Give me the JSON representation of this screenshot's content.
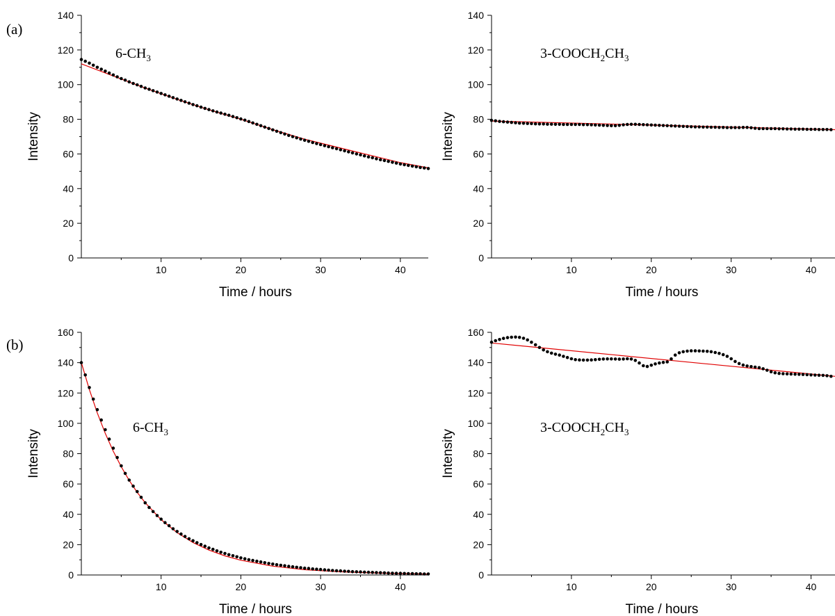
{
  "panel_labels": [
    "(a)",
    "(b)"
  ],
  "chart_data": [
    {
      "type": "scatter",
      "panel": "(a)",
      "annotation": {
        "main": "6-CH",
        "parts": [
          [
            "6-CH",
            ""
          ],
          [
            "3",
            "sub"
          ]
        ]
      },
      "xlabel": "Time / hours",
      "ylabel": "Intensity",
      "xlim": [
        0,
        43.5
      ],
      "ylim": [
        0,
        140
      ],
      "xticks": [
        10,
        20,
        30,
        40
      ],
      "yticks": [
        0,
        20,
        40,
        60,
        80,
        100,
        120,
        140
      ],
      "yminor": 10,
      "xminor": 5,
      "fit_line": {
        "color": "#e00000",
        "x": [
          0,
          4,
          8,
          12,
          16,
          20,
          24,
          28,
          32,
          36,
          40,
          43.5
        ],
        "y": [
          112,
          105,
          98,
          91.5,
          85.5,
          80,
          74,
          68.5,
          64,
          59.5,
          55,
          52
        ]
      },
      "series": [
        {
          "x": [
            0,
            0.5,
            1.0,
            1.5,
            2.0,
            2.5,
            3.0,
            3.5,
            4.0,
            4.5,
            5.0,
            5.5,
            6.0,
            6.5,
            7.0,
            7.5,
            8.0,
            8.5,
            9.0,
            9.5,
            10.0,
            10.5,
            11.0,
            11.5,
            12.0,
            12.5,
            13.0,
            13.5,
            14.0,
            14.5,
            15.0,
            15.5,
            16.0,
            16.5,
            17.0,
            17.5,
            18.0,
            18.5,
            19.0,
            19.5,
            20.0,
            20.5,
            21.0,
            21.5,
            22.0,
            22.5,
            23.0,
            23.5,
            24.0,
            24.5,
            25.0,
            25.5,
            26.0,
            26.5,
            27.0,
            27.5,
            28.0,
            28.5,
            29.0,
            29.5,
            30.0,
            30.5,
            31.0,
            31.5,
            32.0,
            32.5,
            33.0,
            33.5,
            34.0,
            34.5,
            35.0,
            35.5,
            36.0,
            36.5,
            37.0,
            37.5,
            38.0,
            38.5,
            39.0,
            39.5,
            40.0,
            40.5,
            41.0,
            41.5,
            42.0,
            42.5,
            43.0,
            43.5
          ],
          "y": [
            114.5,
            113.5,
            112.4,
            111.2,
            110.0,
            108.9,
            107.8,
            106.7,
            105.6,
            104.5,
            103.5,
            102.6,
            101.6,
            100.7,
            99.9,
            99.0,
            98.1,
            97.3,
            96.5,
            95.7,
            94.9,
            94.1,
            93.3,
            92.5,
            91.7,
            90.9,
            90.1,
            89.3,
            88.5,
            87.8,
            87.0,
            86.3,
            85.6,
            84.9,
            84.2,
            83.6,
            82.9,
            82.3,
            81.6,
            80.9,
            80.2,
            79.5,
            78.7,
            77.9,
            77.1,
            76.3,
            75.5,
            74.7,
            73.9,
            73.1,
            72.3,
            71.5,
            70.7,
            70.0,
            69.3,
            68.6,
            67.9,
            67.3,
            66.6,
            66.0,
            65.4,
            64.8,
            64.2,
            63.6,
            63.0,
            62.4,
            61.8,
            61.2,
            60.6,
            60.0,
            59.5,
            58.9,
            58.3,
            57.8,
            57.2,
            56.7,
            56.2,
            55.7,
            55.2,
            54.7,
            54.2,
            53.8,
            53.4,
            53.0,
            52.6,
            52.2,
            51.9,
            51.6
          ]
        }
      ]
    },
    {
      "type": "scatter",
      "panel": "(a)",
      "annotation": {
        "parts": [
          [
            "3-COOCH",
            ""
          ],
          [
            "2",
            "sub"
          ],
          [
            "CH",
            ""
          ],
          [
            "3",
            "sub"
          ]
        ]
      },
      "xlabel": "Time / hours",
      "ylabel": "Intensity",
      "xlim": [
        0,
        43
      ],
      "ylim": [
        0,
        140
      ],
      "xticks": [
        10,
        20,
        30,
        40
      ],
      "yticks": [
        0,
        20,
        40,
        60,
        80,
        100,
        120,
        140
      ],
      "yminor": 10,
      "xminor": 5,
      "fit_line": {
        "color": "#e00000",
        "x": [
          0,
          43
        ],
        "y": [
          79,
          74
        ]
      },
      "series": [
        {
          "x": [
            0,
            0.5,
            1.0,
            1.5,
            2.0,
            2.5,
            3.0,
            3.5,
            4.0,
            4.5,
            5.0,
            5.5,
            6.0,
            6.5,
            7.0,
            7.5,
            8.0,
            8.5,
            9.0,
            9.5,
            10.0,
            10.5,
            11.0,
            11.5,
            12.0,
            12.5,
            13.0,
            13.5,
            14.0,
            14.5,
            15.0,
            15.5,
            16.0,
            16.5,
            17.0,
            17.5,
            18.0,
            18.5,
            19.0,
            19.5,
            20.0,
            20.5,
            21.0,
            21.5,
            22.0,
            22.5,
            23.0,
            23.5,
            24.0,
            24.5,
            25.0,
            25.5,
            26.0,
            26.5,
            27.0,
            27.5,
            28.0,
            28.5,
            29.0,
            29.5,
            30.0,
            30.5,
            31.0,
            31.5,
            32.0,
            32.5,
            33.0,
            33.5,
            34.0,
            34.5,
            35.0,
            35.5,
            36.0,
            36.5,
            37.0,
            37.5,
            38.0,
            38.5,
            39.0,
            39.5,
            40.0,
            40.5,
            41.0,
            41.5,
            42.0,
            42.5,
            43.0
          ],
          "y": [
            79.4,
            79.1,
            78.8,
            78.6,
            78.4,
            78.2,
            78.0,
            77.8,
            77.7,
            77.6,
            77.5,
            77.4,
            77.3,
            77.3,
            77.2,
            77.2,
            77.1,
            77.1,
            77.0,
            77.0,
            77.0,
            77.0,
            77.0,
            76.9,
            76.9,
            76.8,
            76.7,
            76.6,
            76.5,
            76.4,
            76.3,
            76.3,
            76.5,
            76.8,
            77.0,
            77.1,
            77.1,
            77.0,
            76.9,
            76.8,
            76.7,
            76.6,
            76.5,
            76.4,
            76.3,
            76.2,
            76.1,
            76.0,
            75.9,
            75.8,
            75.7,
            75.6,
            75.6,
            75.5,
            75.5,
            75.4,
            75.4,
            75.3,
            75.3,
            75.2,
            75.2,
            75.2,
            75.2,
            75.3,
            75.3,
            75.1,
            74.8,
            74.6,
            74.6,
            74.6,
            74.6,
            74.6,
            74.5,
            74.5,
            74.4,
            74.4,
            74.3,
            74.3,
            74.3,
            74.2,
            74.2,
            74.2,
            74.1,
            74.1,
            74.1,
            74.0,
            74.0
          ]
        }
      ]
    },
    {
      "type": "scatter",
      "panel": "(b)",
      "annotation": {
        "parts": [
          [
            "6-CH",
            ""
          ],
          [
            "3",
            "sub"
          ]
        ]
      },
      "xlabel": "Time / hours",
      "ylabel": "Intensity",
      "xlim": [
        0,
        43.5
      ],
      "ylim": [
        0,
        160
      ],
      "xticks": [
        10,
        20,
        30,
        40
      ],
      "yticks": [
        0,
        20,
        40,
        60,
        80,
        100,
        120,
        140,
        160
      ],
      "yminor": 10,
      "xminor": 5,
      "fit_line": {
        "color": "#e00000",
        "x": [
          0,
          1,
          2,
          3,
          4,
          5,
          6,
          7,
          8,
          10,
          12,
          14,
          16,
          18,
          20,
          24,
          28,
          32,
          36,
          40,
          43.5
        ],
        "y": [
          140,
          122.3,
          106.9,
          93.4,
          81.6,
          71.4,
          62.4,
          54.5,
          47.7,
          36.5,
          27.9,
          21.4,
          16.4,
          12.6,
          9.7,
          5.8,
          3.5,
          2.2,
          1.4,
          0.9,
          0.6
        ]
      },
      "series": [
        {
          "x": [
            0,
            0.5,
            1.0,
            1.5,
            2.0,
            2.5,
            3.0,
            3.5,
            4.0,
            4.5,
            5.0,
            5.5,
            6.0,
            6.5,
            7.0,
            7.5,
            8.0,
            8.5,
            9.0,
            9.5,
            10.0,
            10.5,
            11.0,
            11.5,
            12.0,
            12.5,
            13.0,
            13.5,
            14.0,
            14.5,
            15.0,
            15.5,
            16.0,
            16.5,
            17.0,
            17.5,
            18.0,
            18.5,
            19.0,
            19.5,
            20.0,
            20.5,
            21.0,
            21.5,
            22.0,
            22.5,
            23.0,
            23.5,
            24.0,
            24.5,
            25.0,
            25.5,
            26.0,
            26.5,
            27.0,
            27.5,
            28.0,
            28.5,
            29.0,
            29.5,
            30.0,
            30.5,
            31.0,
            31.5,
            32.0,
            32.5,
            33.0,
            33.5,
            34.0,
            34.5,
            35.0,
            35.5,
            36.0,
            36.5,
            37.0,
            37.5,
            38.0,
            38.5,
            39.0,
            39.5,
            40.0,
            40.5,
            41.0,
            41.5,
            42.0,
            42.5,
            43.0,
            43.5
          ],
          "y": [
            140,
            131.9,
            123.6,
            116.0,
            109.0,
            102.2,
            95.8,
            89.6,
            83.6,
            77.5,
            72.0,
            67.0,
            62.6,
            58.6,
            55.0,
            51.2,
            47.6,
            44.5,
            41.8,
            39.2,
            36.8,
            34.5,
            32.5,
            30.5,
            28.7,
            27.0,
            25.4,
            23.9,
            22.6,
            21.3,
            20.1,
            19.0,
            17.9,
            16.9,
            15.9,
            15.0,
            14.2,
            13.4,
            12.7,
            12.0,
            11.3,
            10.7,
            10.1,
            9.6,
            9.1,
            8.6,
            8.1,
            7.6,
            7.2,
            6.8,
            6.4,
            6.1,
            5.7,
            5.4,
            5.1,
            4.8,
            4.5,
            4.3,
            4.0,
            3.8,
            3.6,
            3.4,
            3.2,
            3.0,
            2.8,
            2.7,
            2.5,
            2.4,
            2.2,
            2.1,
            2.0,
            1.9,
            1.8,
            1.7,
            1.6,
            1.5,
            1.4,
            1.3,
            1.2,
            1.1,
            1.1,
            1.0,
            0.9,
            0.9,
            0.8,
            0.8,
            0.7,
            0.7
          ]
        }
      ]
    },
    {
      "type": "scatter",
      "panel": "(b)",
      "annotation": {
        "parts": [
          [
            "3-COOCH",
            ""
          ],
          [
            "2",
            "sub"
          ],
          [
            "CH",
            ""
          ],
          [
            "3",
            "sub"
          ]
        ]
      },
      "xlabel": "Time / hours",
      "ylabel": "Intensity",
      "xlim": [
        0,
        43
      ],
      "ylim": [
        0,
        160
      ],
      "xticks": [
        10,
        20,
        30,
        40
      ],
      "yticks": [
        0,
        20,
        40,
        60,
        80,
        100,
        120,
        140,
        160
      ],
      "yminor": 10,
      "xminor": 5,
      "fit_line": {
        "color": "#e00000",
        "x": [
          0,
          43
        ],
        "y": [
          153,
          131
        ]
      },
      "series": [
        {
          "x": [
            0,
            0.5,
            1.0,
            1.5,
            2.0,
            2.5,
            3.0,
            3.5,
            4.0,
            4.5,
            5.0,
            5.5,
            6.0,
            6.5,
            7.0,
            7.5,
            8.0,
            8.5,
            9.0,
            9.5,
            10.0,
            10.5,
            11.0,
            11.5,
            12.0,
            12.5,
            13.0,
            13.5,
            14.0,
            14.5,
            15.0,
            15.5,
            16.0,
            16.5,
            17.0,
            17.5,
            18.0,
            18.5,
            19.0,
            19.5,
            20.0,
            20.5,
            21.0,
            21.5,
            22.0,
            22.5,
            23.0,
            23.5,
            24.0,
            24.5,
            25.0,
            25.5,
            26.0,
            26.5,
            27.0,
            27.5,
            28.0,
            28.5,
            29.0,
            29.5,
            30.0,
            30.5,
            31.0,
            31.5,
            32.0,
            32.5,
            33.0,
            33.5,
            34.0,
            34.5,
            35.0,
            35.5,
            36.0,
            36.5,
            37.0,
            37.5,
            38.0,
            38.5,
            39.0,
            39.5,
            40.0,
            40.5,
            41.0,
            41.5,
            42.0,
            42.5,
            43.0
          ],
          "y": [
            153.5,
            154.5,
            155.3,
            156.0,
            156.5,
            156.8,
            156.9,
            156.7,
            156.1,
            155.0,
            153.5,
            151.8,
            150.0,
            148.4,
            147.2,
            146.3,
            145.6,
            145.0,
            144.2,
            143.4,
            142.6,
            142.0,
            141.8,
            141.7,
            141.7,
            141.8,
            142.0,
            142.2,
            142.4,
            142.5,
            142.5,
            142.4,
            142.3,
            142.4,
            142.6,
            142.4,
            141.5,
            139.8,
            138.0,
            137.5,
            138.3,
            139.2,
            139.8,
            140.2,
            140.5,
            142.5,
            145.0,
            146.5,
            147.2,
            147.6,
            147.8,
            147.8,
            147.7,
            147.6,
            147.5,
            147.2,
            146.7,
            146.1,
            145.3,
            144.2,
            142.6,
            140.8,
            139.4,
            138.4,
            137.8,
            137.4,
            137.1,
            136.7,
            136.0,
            135.0,
            134.0,
            133.3,
            132.9,
            132.7,
            132.6,
            132.5,
            132.4,
            132.3,
            132.2,
            132.1,
            131.9,
            131.8,
            131.7,
            131.6,
            131.4,
            131.0,
            130.6
          ]
        }
      ]
    }
  ]
}
